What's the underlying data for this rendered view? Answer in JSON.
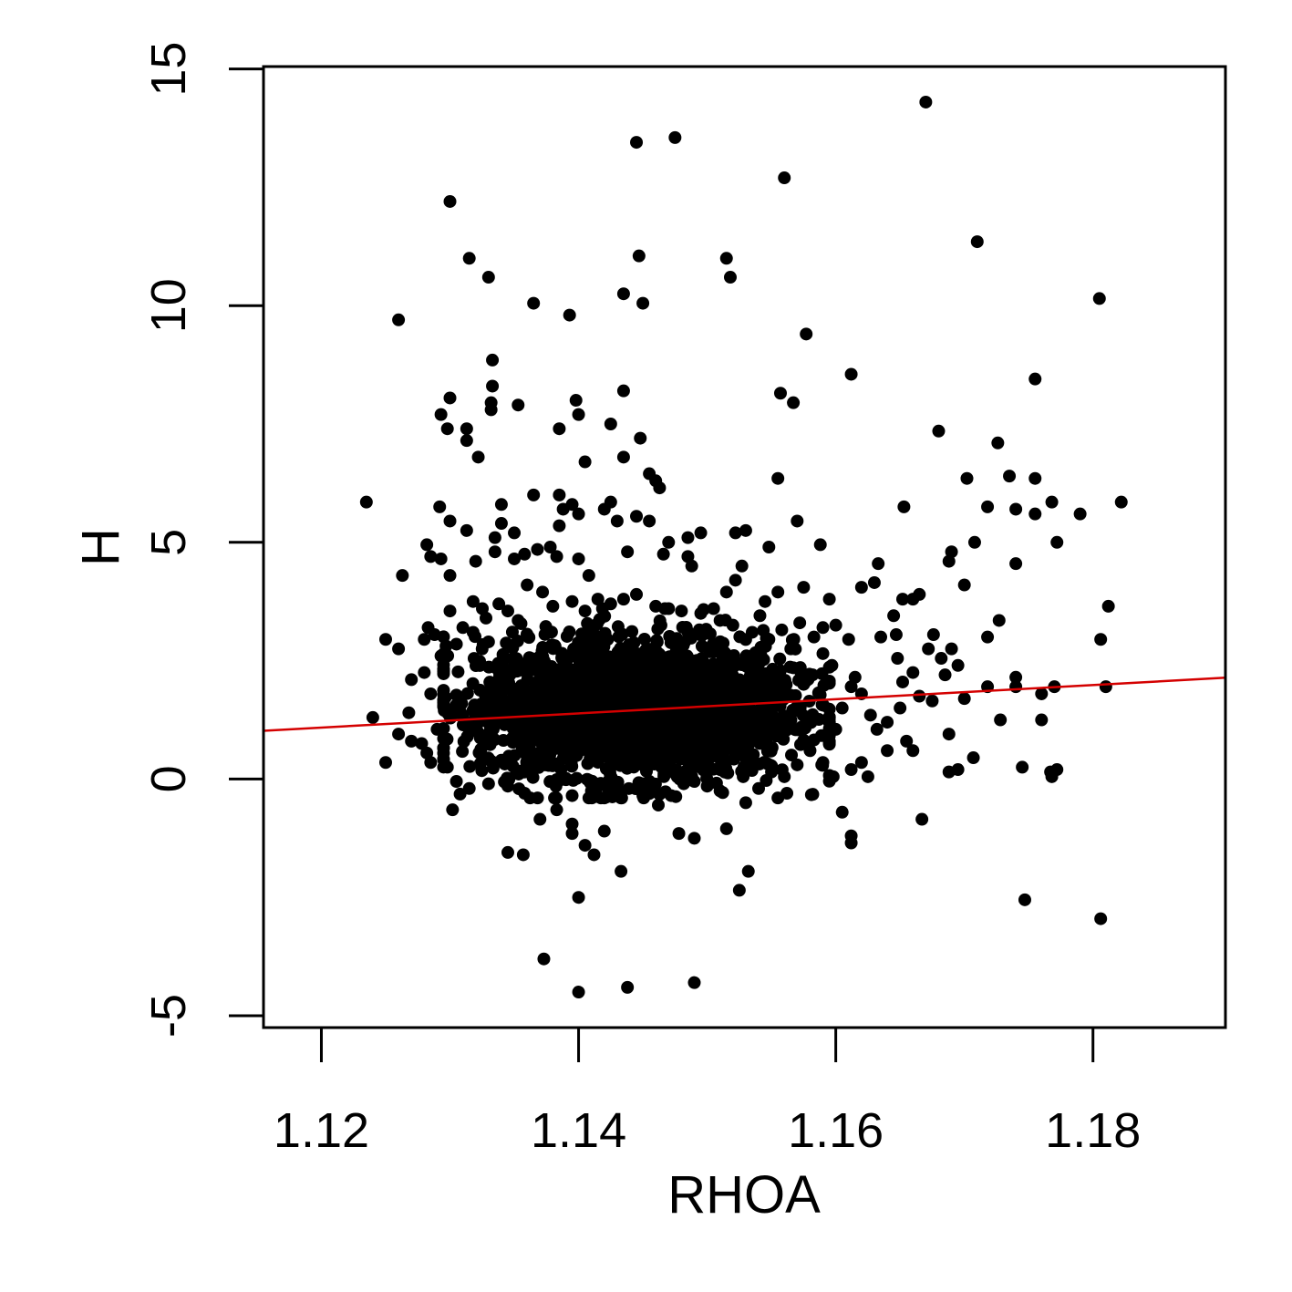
{
  "chart_data": {
    "type": "scatter",
    "title": "",
    "xlabel": "RHOA",
    "ylabel": "H",
    "xlim": [
      1.1155,
      1.1903
    ],
    "ylim": [
      -5.25,
      15.05
    ],
    "xticks": [
      1.12,
      1.14,
      1.16,
      1.18
    ],
    "xtick_labels": [
      "1.12",
      "1.14",
      "1.16",
      "1.18"
    ],
    "yticks": [
      -5,
      0,
      5,
      10,
      15
    ],
    "ytick_labels": [
      "-5",
      "0",
      "5",
      "10",
      "15"
    ],
    "grid": false,
    "legend": "none",
    "point_color": "#000000",
    "line_color": "#d40000",
    "trend_line": {
      "x": [
        1.1155,
        1.1903
      ],
      "y": [
        1.02,
        2.14
      ]
    },
    "core_cluster": {
      "description": "dense core of overlapping points",
      "x_range": [
        1.1335,
        1.1555
      ],
      "y_range": [
        0.2,
        2.8
      ],
      "approx_count": 2500
    },
    "points": [
      [
        1.1235,
        5.85
      ],
      [
        1.125,
        2.95
      ],
      [
        1.126,
        9.7
      ],
      [
        1.13,
        12.2
      ],
      [
        1.1315,
        11.0
      ],
      [
        1.133,
        10.6
      ],
      [
        1.1365,
        10.05
      ],
      [
        1.1393,
        9.8
      ],
      [
        1.1445,
        13.45
      ],
      [
        1.1475,
        13.55
      ],
      [
        1.1447,
        11.05
      ],
      [
        1.1435,
        10.25
      ],
      [
        1.145,
        10.05
      ],
      [
        1.1515,
        11.0
      ],
      [
        1.1518,
        10.6
      ],
      [
        1.156,
        12.7
      ],
      [
        1.167,
        14.3
      ],
      [
        1.171,
        11.35
      ],
      [
        1.1805,
        10.15
      ],
      [
        1.1577,
        9.4
      ],
      [
        1.1333,
        8.85
      ],
      [
        1.1333,
        8.3
      ],
      [
        1.1332,
        7.95
      ],
      [
        1.1332,
        7.8
      ],
      [
        1.13,
        8.05
      ],
      [
        1.1293,
        7.7
      ],
      [
        1.1298,
        7.4
      ],
      [
        1.1313,
        7.4
      ],
      [
        1.1313,
        7.15
      ],
      [
        1.1322,
        6.8
      ],
      [
        1.1353,
        7.9
      ],
      [
        1.1398,
        8.0
      ],
      [
        1.14,
        7.7
      ],
      [
        1.1385,
        7.4
      ],
      [
        1.1435,
        8.2
      ],
      [
        1.1425,
        7.5
      ],
      [
        1.1448,
        7.2
      ],
      [
        1.1435,
        6.8
      ],
      [
        1.1405,
        6.7
      ],
      [
        1.1455,
        6.45
      ],
      [
        1.146,
        6.3
      ],
      [
        1.1463,
        6.15
      ],
      [
        1.1557,
        8.15
      ],
      [
        1.1567,
        7.95
      ],
      [
        1.1612,
        8.55
      ],
      [
        1.1555,
        6.35
      ],
      [
        1.157,
        5.45
      ],
      [
        1.1548,
        4.9
      ],
      [
        1.153,
        5.25
      ],
      [
        1.1495,
        5.2
      ],
      [
        1.1522,
        5.2
      ],
      [
        1.1588,
        4.95
      ],
      [
        1.1653,
        5.75
      ],
      [
        1.168,
        7.35
      ],
      [
        1.1702,
        6.35
      ],
      [
        1.1726,
        7.1
      ],
      [
        1.1735,
        6.4
      ],
      [
        1.1718,
        5.75
      ],
      [
        1.174,
        5.7
      ],
      [
        1.1755,
        6.35
      ],
      [
        1.1755,
        5.6
      ],
      [
        1.1768,
        5.85
      ],
      [
        1.179,
        5.6
      ],
      [
        1.1822,
        5.85
      ],
      [
        1.1755,
        8.45
      ],
      [
        1.1708,
        5.0
      ],
      [
        1.169,
        4.8
      ],
      [
        1.1688,
        4.6
      ],
      [
        1.174,
        4.55
      ],
      [
        1.1772,
        5.0
      ],
      [
        1.17,
        4.1
      ],
      [
        1.1727,
        3.35
      ],
      [
        1.1718,
        3.0
      ],
      [
        1.1812,
        3.65
      ],
      [
        1.1806,
        2.95
      ],
      [
        1.169,
        2.75
      ],
      [
        1.1695,
        2.4
      ],
      [
        1.17,
        1.7
      ],
      [
        1.1718,
        1.95
      ],
      [
        1.174,
        2.15
      ],
      [
        1.174,
        1.95
      ],
      [
        1.176,
        1.8
      ],
      [
        1.177,
        1.95
      ],
      [
        1.181,
        1.95
      ],
      [
        1.1728,
        1.25
      ],
      [
        1.176,
        1.25
      ],
      [
        1.1707,
        0.45
      ],
      [
        1.1688,
        0.95
      ],
      [
        1.1688,
        0.15
      ],
      [
        1.1695,
        0.2
      ],
      [
        1.1745,
        0.25
      ],
      [
        1.1767,
        0.15
      ],
      [
        1.1768,
        0.05
      ],
      [
        1.1772,
        0.2
      ],
      [
        1.1667,
        -0.85
      ],
      [
        1.1747,
        -2.55
      ],
      [
        1.1806,
        -2.95
      ],
      [
        1.1612,
        -1.2
      ],
      [
        1.1612,
        -1.35
      ],
      [
        1.1605,
        -0.7
      ],
      [
        1.1555,
        -0.4
      ],
      [
        1.153,
        -0.5
      ],
      [
        1.1515,
        -1.05
      ],
      [
        1.1532,
        -1.95
      ],
      [
        1.1525,
        -2.35
      ],
      [
        1.149,
        -1.25
      ],
      [
        1.1478,
        -1.15
      ],
      [
        1.149,
        -4.3
      ],
      [
        1.1438,
        -4.4
      ],
      [
        1.14,
        -4.5
      ],
      [
        1.1373,
        -3.8
      ],
      [
        1.14,
        -2.5
      ],
      [
        1.1433,
        -1.95
      ],
      [
        1.1412,
        -1.6
      ],
      [
        1.1405,
        -1.4
      ],
      [
        1.1395,
        -1.15
      ],
      [
        1.1395,
        -0.95
      ],
      [
        1.1345,
        -1.55
      ],
      [
        1.1357,
        -1.6
      ],
      [
        1.142,
        -1.1
      ],
      [
        1.1302,
        -0.65
      ],
      [
        1.125,
        0.35
      ],
      [
        1.124,
        1.3
      ],
      [
        1.126,
        0.95
      ],
      [
        1.127,
        2.1
      ],
      [
        1.1268,
        1.4
      ],
      [
        1.1282,
        0.55
      ],
      [
        1.127,
        0.8
      ],
      [
        1.128,
        2.95
      ],
      [
        1.1283,
        3.2
      ],
      [
        1.126,
        2.75
      ],
      [
        1.1263,
        4.3
      ],
      [
        1.1288,
        3.05
      ],
      [
        1.13,
        3.55
      ],
      [
        1.1293,
        4.65
      ],
      [
        1.1292,
        5.75
      ],
      [
        1.13,
        5.45
      ],
      [
        1.1313,
        5.25
      ],
      [
        1.1282,
        4.95
      ],
      [
        1.1285,
        4.7
      ],
      [
        1.13,
        4.3
      ],
      [
        1.1318,
        3.75
      ],
      [
        1.132,
        4.6
      ],
      [
        1.1335,
        4.8
      ],
      [
        1.1335,
        5.1
      ],
      [
        1.134,
        5.4
      ],
      [
        1.134,
        5.8
      ],
      [
        1.135,
        5.2
      ],
      [
        1.1365,
        6.0
      ],
      [
        1.1385,
        6.0
      ],
      [
        1.1388,
        5.7
      ],
      [
        1.1395,
        5.8
      ],
      [
        1.14,
        5.6
      ],
      [
        1.1385,
        5.35
      ],
      [
        1.14,
        4.65
      ],
      [
        1.1408,
        4.3
      ],
      [
        1.142,
        5.7
      ],
      [
        1.1425,
        5.85
      ],
      [
        1.143,
        5.45
      ],
      [
        1.1438,
        4.8
      ],
      [
        1.1445,
        5.55
      ],
      [
        1.1455,
        5.45
      ],
      [
        1.1466,
        4.75
      ],
      [
        1.147,
        5.0
      ],
      [
        1.1485,
        5.1
      ],
      [
        1.1485,
        4.7
      ],
      [
        1.1488,
        4.5
      ],
      [
        1.135,
        4.65
      ],
      [
        1.1358,
        4.75
      ],
      [
        1.1368,
        4.85
      ],
      [
        1.1378,
        4.9
      ],
      [
        1.1383,
        4.7
      ],
      [
        1.136,
        4.1
      ],
      [
        1.1372,
        3.95
      ],
      [
        1.138,
        3.65
      ],
      [
        1.1505,
        3.6
      ],
      [
        1.1515,
        3.95
      ],
      [
        1.1522,
        4.2
      ],
      [
        1.1527,
        4.5
      ],
      [
        1.1545,
        3.75
      ],
      [
        1.1555,
        3.95
      ],
      [
        1.1575,
        4.05
      ],
      [
        1.1572,
        3.3
      ],
      [
        1.1583,
        3.0
      ],
      [
        1.159,
        3.2
      ],
      [
        1.1595,
        3.8
      ],
      [
        1.16,
        3.25
      ],
      [
        1.161,
        2.95
      ],
      [
        1.162,
        4.05
      ],
      [
        1.1633,
        4.55
      ],
      [
        1.163,
        4.15
      ],
      [
        1.1635,
        3.0
      ],
      [
        1.1645,
        3.45
      ],
      [
        1.1647,
        3.05
      ],
      [
        1.1652,
        3.8
      ],
      [
        1.166,
        3.8
      ],
      [
        1.1665,
        3.9
      ],
      [
        1.1648,
        2.55
      ],
      [
        1.166,
        2.25
      ],
      [
        1.1672,
        2.75
      ],
      [
        1.1676,
        3.05
      ],
      [
        1.1682,
        2.55
      ],
      [
        1.1685,
        2.2
      ],
      [
        1.1652,
        2.05
      ],
      [
        1.1665,
        1.75
      ],
      [
        1.1675,
        1.65
      ],
      [
        1.165,
        1.5
      ],
      [
        1.164,
        1.2
      ],
      [
        1.1632,
        1.05
      ],
      [
        1.1627,
        1.35
      ],
      [
        1.162,
        1.8
      ],
      [
        1.1615,
        2.15
      ],
      [
        1.1612,
        1.95
      ],
      [
        1.1605,
        1.5
      ],
      [
        1.16,
        1.05
      ],
      [
        1.1595,
        0.8
      ],
      [
        1.159,
        0.35
      ],
      [
        1.1598,
        0.05
      ],
      [
        1.1612,
        0.2
      ],
      [
        1.162,
        0.35
      ],
      [
        1.1625,
        0.05
      ],
      [
        1.164,
        0.6
      ],
      [
        1.1655,
        0.8
      ],
      [
        1.166,
        0.6
      ],
      [
        1.158,
        0.6
      ],
      [
        1.157,
        0.3
      ],
      [
        1.156,
        0.05
      ],
      [
        1.1562,
        -0.3
      ],
      [
        1.155,
        0.15
      ],
      [
        1.154,
        -0.2
      ],
      [
        1.1528,
        0.05
      ],
      [
        1.151,
        -0.25
      ],
      [
        1.15,
        -0.15
      ],
      [
        1.149,
        -0.05
      ],
      [
        1.1472,
        -0.35
      ],
      [
        1.1462,
        -0.55
      ],
      [
        1.145,
        -0.35
      ],
      [
        1.1432,
        -0.25
      ],
      [
        1.142,
        -0.4
      ],
      [
        1.141,
        -0.25
      ],
      [
        1.1395,
        -0.35
      ],
      [
        1.1383,
        -0.65
      ],
      [
        1.137,
        -0.85
      ],
      [
        1.1358,
        -0.3
      ],
      [
        1.1345,
        -0.15
      ],
      [
        1.133,
        -0.1
      ],
      [
        1.1315,
        -0.2
      ],
      [
        1.1305,
        -0.05
      ],
      [
        1.1298,
        0.25
      ],
      [
        1.1285,
        0.35
      ],
      [
        1.1278,
        0.75
      ],
      [
        1.129,
        1.05
      ],
      [
        1.1295,
        1.55
      ],
      [
        1.1285,
        1.8
      ],
      [
        1.128,
        2.25
      ],
      [
        1.1293,
        2.6
      ],
      [
        1.1305,
        2.85
      ],
      [
        1.131,
        3.2
      ],
      [
        1.1318,
        3.1
      ],
      [
        1.1325,
        2.75
      ],
      [
        1.1328,
        3.4
      ],
      [
        1.1338,
        3.7
      ],
      [
        1.1345,
        3.55
      ],
      [
        1.1353,
        3.35
      ],
      [
        1.1395,
        3.75
      ],
      [
        1.1405,
        3.55
      ],
      [
        1.1415,
        3.8
      ],
      [
        1.1425,
        3.7
      ],
      [
        1.1435,
        3.8
      ],
      [
        1.1445,
        3.9
      ],
      [
        1.146,
        3.65
      ],
      [
        1.147,
        3.6
      ],
      [
        1.148,
        3.55
      ],
      [
        1.1495,
        3.5
      ],
      [
        1.151,
        3.35
      ],
      [
        1.152,
        3.25
      ],
      [
        1.1535,
        3.1
      ],
      [
        1.1548,
        2.95
      ],
      [
        1.1558,
        3.15
      ],
      [
        1.1565,
        2.75
      ],
      [
        1.159,
        2.65
      ],
      [
        1.1597,
        2.4
      ],
      [
        1.1582,
        2.2
      ],
      [
        1.1575,
        2.0
      ],
      [
        1.1567,
        2.35
      ]
    ]
  }
}
